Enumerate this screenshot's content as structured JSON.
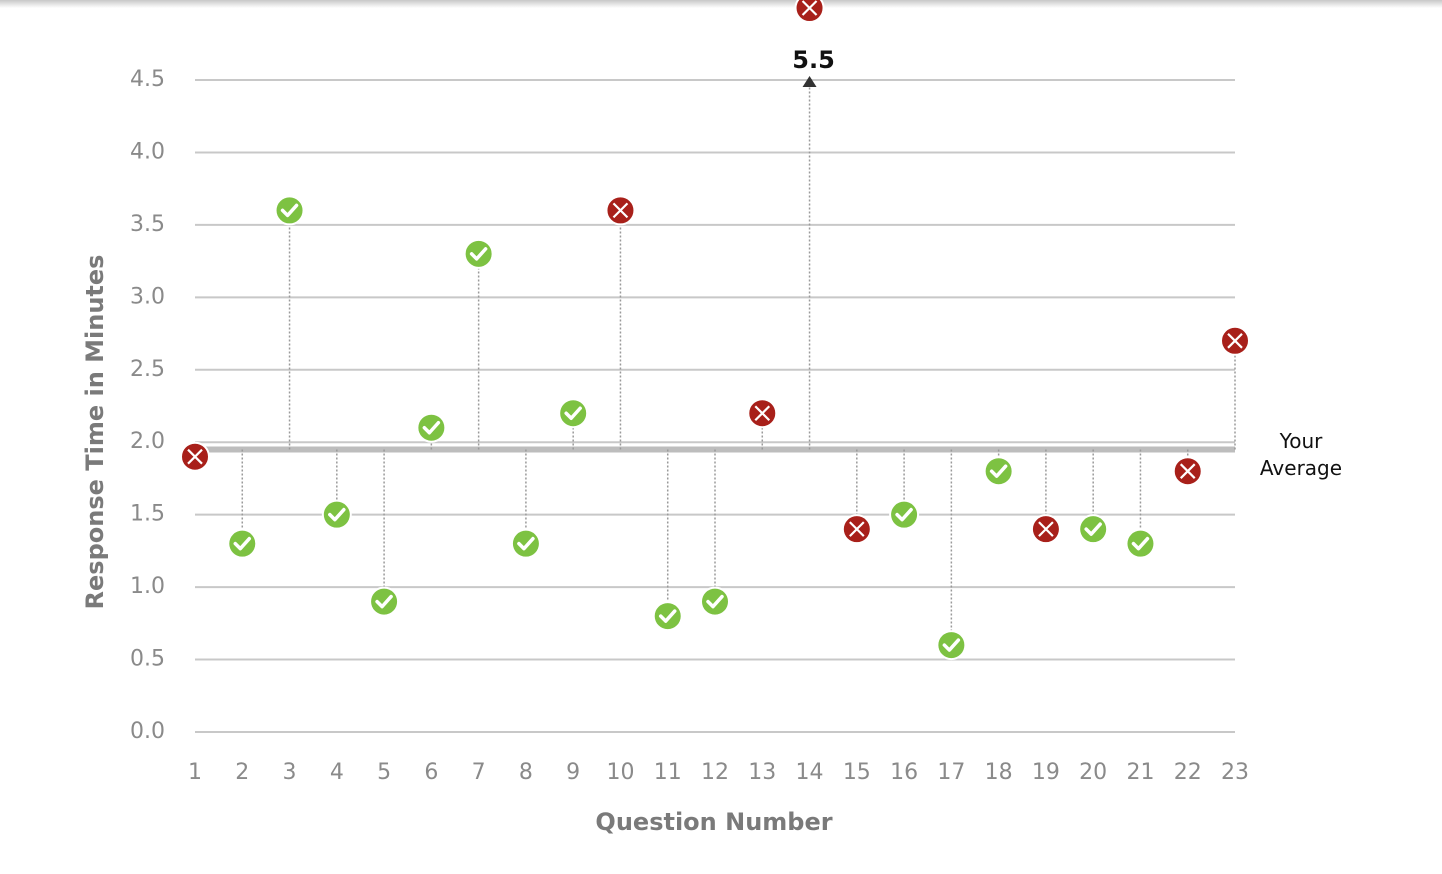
{
  "chart_data": {
    "type": "scatter",
    "x_label": "Question Number",
    "y_label": "Response Time in Minutes",
    "x": [
      1,
      2,
      3,
      4,
      5,
      6,
      7,
      8,
      9,
      10,
      11,
      12,
      13,
      14,
      15,
      16,
      17,
      18,
      19,
      20,
      21,
      22,
      23
    ],
    "values": [
      1.9,
      1.3,
      3.6,
      1.5,
      0.9,
      2.1,
      3.3,
      1.3,
      2.2,
      3.6,
      0.8,
      0.9,
      2.2,
      5.5,
      1.4,
      1.5,
      0.6,
      1.8,
      1.4,
      1.4,
      1.3,
      1.8,
      2.7
    ],
    "value_labels": [
      null,
      null,
      null,
      null,
      null,
      null,
      null,
      null,
      null,
      null,
      null,
      null,
      null,
      "5.5",
      null,
      null,
      null,
      null,
      null,
      null,
      null,
      null,
      null
    ],
    "markers": [
      "cross",
      "check",
      "check",
      "check",
      "check",
      "check",
      "check",
      "check",
      "check",
      "cross",
      "check",
      "check",
      "cross",
      "cross",
      "cross",
      "check",
      "check",
      "check",
      "cross",
      "check",
      "check",
      "cross",
      "cross"
    ],
    "marker_colors": {
      "check": "#7dc242",
      "cross": "#a8201a"
    },
    "reference_line": {
      "value": 1.95,
      "label": "Your Average",
      "color": "#bdbdbd"
    },
    "xlim": [
      1,
      23
    ],
    "xticks": [
      1,
      2,
      3,
      4,
      5,
      6,
      7,
      8,
      9,
      10,
      11,
      12,
      13,
      14,
      15,
      16,
      17,
      18,
      19,
      20,
      21,
      22,
      23
    ],
    "ylim": [
      0,
      4.5
    ],
    "yticks": [
      {
        "value": 0,
        "label": "0.0"
      },
      {
        "value": 0.5,
        "label": "0.5"
      },
      {
        "value": 1,
        "label": "1.0"
      },
      {
        "value": 1.5,
        "label": "1.5"
      },
      {
        "value": 2,
        "label": "2.0"
      },
      {
        "value": 2.5,
        "label": "2.5"
      },
      {
        "value": 3,
        "label": "3.0"
      },
      {
        "value": 3.5,
        "label": "3.5"
      },
      {
        "value": 4,
        "label": "4.0"
      },
      {
        "value": 4.5,
        "label": "4.5"
      }
    ],
    "grid": true
  }
}
